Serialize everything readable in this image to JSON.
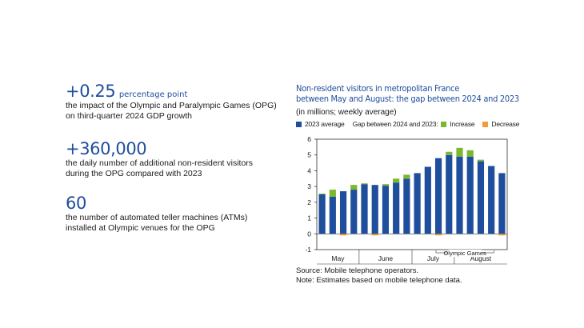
{
  "stats": [
    {
      "value": "+0.25",
      "unit": "percentage point",
      "desc1": "the impact of the Olympic and Paralympic Games (OPG)",
      "desc2": "on third-quarter 2024 GDP growth"
    },
    {
      "value": "+360,000",
      "unit": "",
      "desc1": "the daily number of additional non-resident visitors",
      "desc2": "during the OPG compared with 2023"
    },
    {
      "value": "60",
      "unit": "",
      "desc1": "the number of automated teller machines (ATMs)",
      "desc2": "installed at Olympic venues for the OPG"
    }
  ],
  "chart_data": {
    "type": "bar",
    "title_line1": "Non-resident visitors in metropolitan France",
    "title_line2": "between May and August: the gap between 2024 and 2023",
    "subtitle": "(in millions; weekly average)",
    "legend": {
      "base": "2023 average",
      "gap_label": "Gap between 2024 and 2023:",
      "increase": "Increase",
      "decrease": "Decrease"
    },
    "colors": {
      "base": "#1f4e9d",
      "increase": "#7ab82e",
      "decrease": "#f39a3a",
      "grid": "#cfd6e0",
      "axis": "#333333"
    },
    "ylim": [
      -1,
      6
    ],
    "yticks": [
      -1,
      0,
      1,
      2,
      3,
      4,
      5,
      6
    ],
    "series": [
      {
        "name": "2023 average",
        "values": [
          2.5,
          2.35,
          2.7,
          2.8,
          3.15,
          3.1,
          3.05,
          3.25,
          3.5,
          3.85,
          4.25,
          4.8,
          5.0,
          4.9,
          4.9,
          4.6,
          4.3,
          3.85
        ]
      },
      {
        "name": "Increase",
        "values": [
          0.05,
          0.45,
          0.0,
          0.3,
          0.05,
          0.0,
          0.1,
          0.25,
          0.25,
          0.0,
          0.0,
          0.0,
          0.2,
          0.55,
          0.4,
          0.1,
          0.0,
          0.0
        ]
      },
      {
        "name": "Decrease",
        "values": [
          0.0,
          0.0,
          -0.1,
          0.0,
          0.0,
          -0.1,
          0.0,
          0.0,
          0.0,
          0.0,
          0.0,
          -0.1,
          0.0,
          0.0,
          0.0,
          0.0,
          0.0,
          -0.1
        ]
      }
    ],
    "months": [
      {
        "label": "May",
        "start": 0,
        "end": 4
      },
      {
        "label": "June",
        "start": 4,
        "end": 9
      },
      {
        "label": "July",
        "start": 9,
        "end": 13
      },
      {
        "label": "August",
        "start": 13,
        "end": 18
      }
    ],
    "annotation": {
      "label": "Olympic Games",
      "start": 11,
      "end": 16
    }
  },
  "source": "Source: Mobile telephone operators.",
  "note": "Note: Estimates based on mobile telephone data."
}
